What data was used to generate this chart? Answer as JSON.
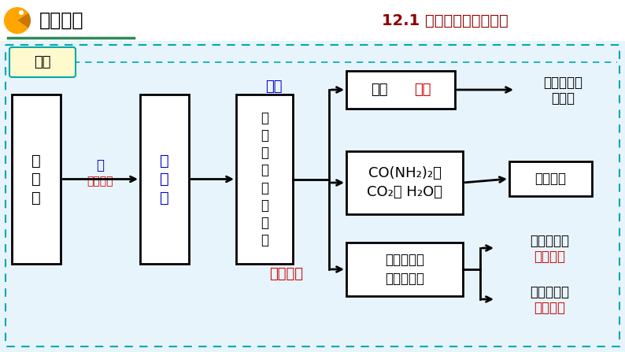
{
  "title": "12.1 人类重要的营养物质",
  "title_color": "#8B0000",
  "header_text": "探究新知",
  "box_daitie": "代谢",
  "box_danbai": "蛋\n白\n质",
  "box_anjisuan": "氨\n基\n酸",
  "box_tongguochangbi": "通\n过\n肠\n壁\n进\n入\n血\n液",
  "box_fangchu_black": "放出",
  "box_fangchu_red": "能量",
  "box_co_line1": "CO(NH₂)₂、",
  "box_co_line2": "CO₂、 H₂O等",
  "box_renti_line1": "人体所需的",
  "box_renti_line2": "各种蛋白质",
  "box_chupai": "排出体外",
  "label_shui": "水",
  "label_wei_changdao": "胃、肠道",
  "label_yanghua": "氧化",
  "label_chongxin": "重新组成",
  "text_gong1": "供人体活动",
  "text_gong2": "的需要",
  "text_weichi1a": "维持人体的",
  "text_weichi1b": "生长发育",
  "text_weichi2a": "维持人体的",
  "text_weichi2b": "组织更新",
  "blue_color": "#0000CD",
  "red_color": "#CC0000",
  "black_color": "#000000",
  "white_color": "#FFFFFF",
  "outer_border_color": "#00AAAA",
  "daitie_border_color": "#00AAAA",
  "daitie_fill": "#FFFACD",
  "header_underline_color": "#2E8B57",
  "pacman_color": "#FFA500",
  "slide_bg": "#D6E8F5",
  "header_bg": "#FFFFFF",
  "content_bg": "#E8F4FC"
}
